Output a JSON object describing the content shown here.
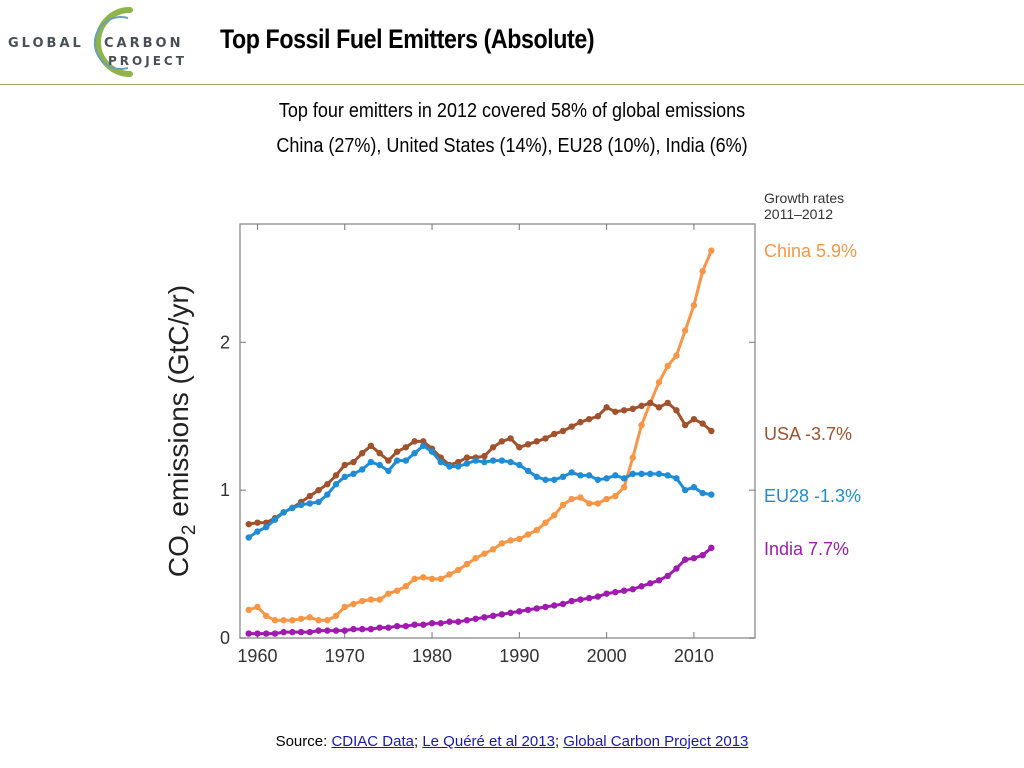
{
  "logo": {
    "word1": "GLOBAL",
    "word2": "CARBON",
    "word3": "PROJECT"
  },
  "title": "Top Fossil Fuel Emitters (Absolute)",
  "subtitle_line1": "Top four emitters in 2012 covered 58% of global emissions",
  "subtitle_line2": "China (27%), United States (14%), EU28 (10%), India (6%)",
  "source": {
    "prefix": "Source: ",
    "link1": "CDIAC Data",
    "sep1": "; ",
    "link2": "Le Quéré et al 2013",
    "sep2": "; ",
    "link3": "Global Carbon Project 2013"
  },
  "chart_data": {
    "type": "line",
    "ylabel_main": "CO",
    "ylabel_sub": "2",
    "ylabel_rest": " emissions (GtC/yr)",
    "xlim": [
      1958,
      2017
    ],
    "ylim": [
      0,
      2.8
    ],
    "xticks": [
      1960,
      1970,
      1980,
      1990,
      2000,
      2010
    ],
    "yticks": [
      0,
      1,
      2
    ],
    "legend_title_line1": "Growth rates",
    "legend_title_line2": "2011–2012",
    "legend_placement": "right",
    "x": [
      1959,
      1960,
      1961,
      1962,
      1963,
      1964,
      1965,
      1966,
      1967,
      1968,
      1969,
      1970,
      1971,
      1972,
      1973,
      1974,
      1975,
      1976,
      1977,
      1978,
      1979,
      1980,
      1981,
      1982,
      1983,
      1984,
      1985,
      1986,
      1987,
      1988,
      1989,
      1990,
      1991,
      1992,
      1993,
      1994,
      1995,
      1996,
      1997,
      1998,
      1999,
      2000,
      2001,
      2002,
      2003,
      2004,
      2005,
      2006,
      2007,
      2008,
      2009,
      2010,
      2011,
      2012
    ],
    "series": [
      {
        "name": "China",
        "label": "China 5.9%",
        "color": "#f79646",
        "values": [
          0.19,
          0.21,
          0.15,
          0.12,
          0.12,
          0.12,
          0.13,
          0.14,
          0.12,
          0.12,
          0.15,
          0.21,
          0.23,
          0.25,
          0.26,
          0.26,
          0.3,
          0.32,
          0.35,
          0.4,
          0.41,
          0.4,
          0.4,
          0.43,
          0.46,
          0.5,
          0.54,
          0.57,
          0.6,
          0.64,
          0.66,
          0.67,
          0.7,
          0.73,
          0.78,
          0.83,
          0.9,
          0.94,
          0.95,
          0.91,
          0.91,
          0.94,
          0.96,
          1.02,
          1.22,
          1.44,
          1.59,
          1.73,
          1.84,
          1.91,
          2.08,
          2.25,
          2.48,
          2.62
        ]
      },
      {
        "name": "USA",
        "label": "USA -3.7%",
        "color": "#a0522d",
        "values": [
          0.77,
          0.78,
          0.78,
          0.81,
          0.85,
          0.88,
          0.92,
          0.96,
          1.0,
          1.04,
          1.1,
          1.17,
          1.19,
          1.25,
          1.3,
          1.25,
          1.2,
          1.26,
          1.29,
          1.33,
          1.33,
          1.28,
          1.22,
          1.17,
          1.19,
          1.22,
          1.22,
          1.23,
          1.29,
          1.33,
          1.35,
          1.29,
          1.31,
          1.33,
          1.35,
          1.38,
          1.4,
          1.43,
          1.46,
          1.48,
          1.5,
          1.56,
          1.53,
          1.54,
          1.55,
          1.57,
          1.59,
          1.56,
          1.59,
          1.54,
          1.44,
          1.48,
          1.45,
          1.4
        ]
      },
      {
        "name": "EU28",
        "label": "EU28 -1.3%",
        "color": "#1f8dd6",
        "values": [
          0.68,
          0.72,
          0.75,
          0.8,
          0.85,
          0.88,
          0.9,
          0.91,
          0.92,
          0.97,
          1.04,
          1.09,
          1.11,
          1.14,
          1.19,
          1.17,
          1.13,
          1.2,
          1.2,
          1.25,
          1.3,
          1.26,
          1.19,
          1.16,
          1.16,
          1.18,
          1.2,
          1.19,
          1.2,
          1.2,
          1.19,
          1.17,
          1.13,
          1.09,
          1.07,
          1.07,
          1.09,
          1.12,
          1.1,
          1.1,
          1.07,
          1.08,
          1.1,
          1.08,
          1.11,
          1.11,
          1.11,
          1.11,
          1.1,
          1.08,
          1.0,
          1.02,
          0.98,
          0.97
        ]
      },
      {
        "name": "India",
        "label": "India 7.7%",
        "color": "#a01ab0",
        "values": [
          0.03,
          0.03,
          0.03,
          0.03,
          0.04,
          0.04,
          0.04,
          0.04,
          0.05,
          0.05,
          0.05,
          0.05,
          0.06,
          0.06,
          0.06,
          0.07,
          0.07,
          0.08,
          0.08,
          0.09,
          0.09,
          0.1,
          0.1,
          0.11,
          0.11,
          0.12,
          0.13,
          0.14,
          0.15,
          0.16,
          0.17,
          0.18,
          0.19,
          0.2,
          0.21,
          0.22,
          0.23,
          0.25,
          0.26,
          0.27,
          0.28,
          0.3,
          0.31,
          0.32,
          0.33,
          0.35,
          0.37,
          0.39,
          0.42,
          0.47,
          0.53,
          0.54,
          0.56,
          0.61
        ]
      }
    ]
  }
}
